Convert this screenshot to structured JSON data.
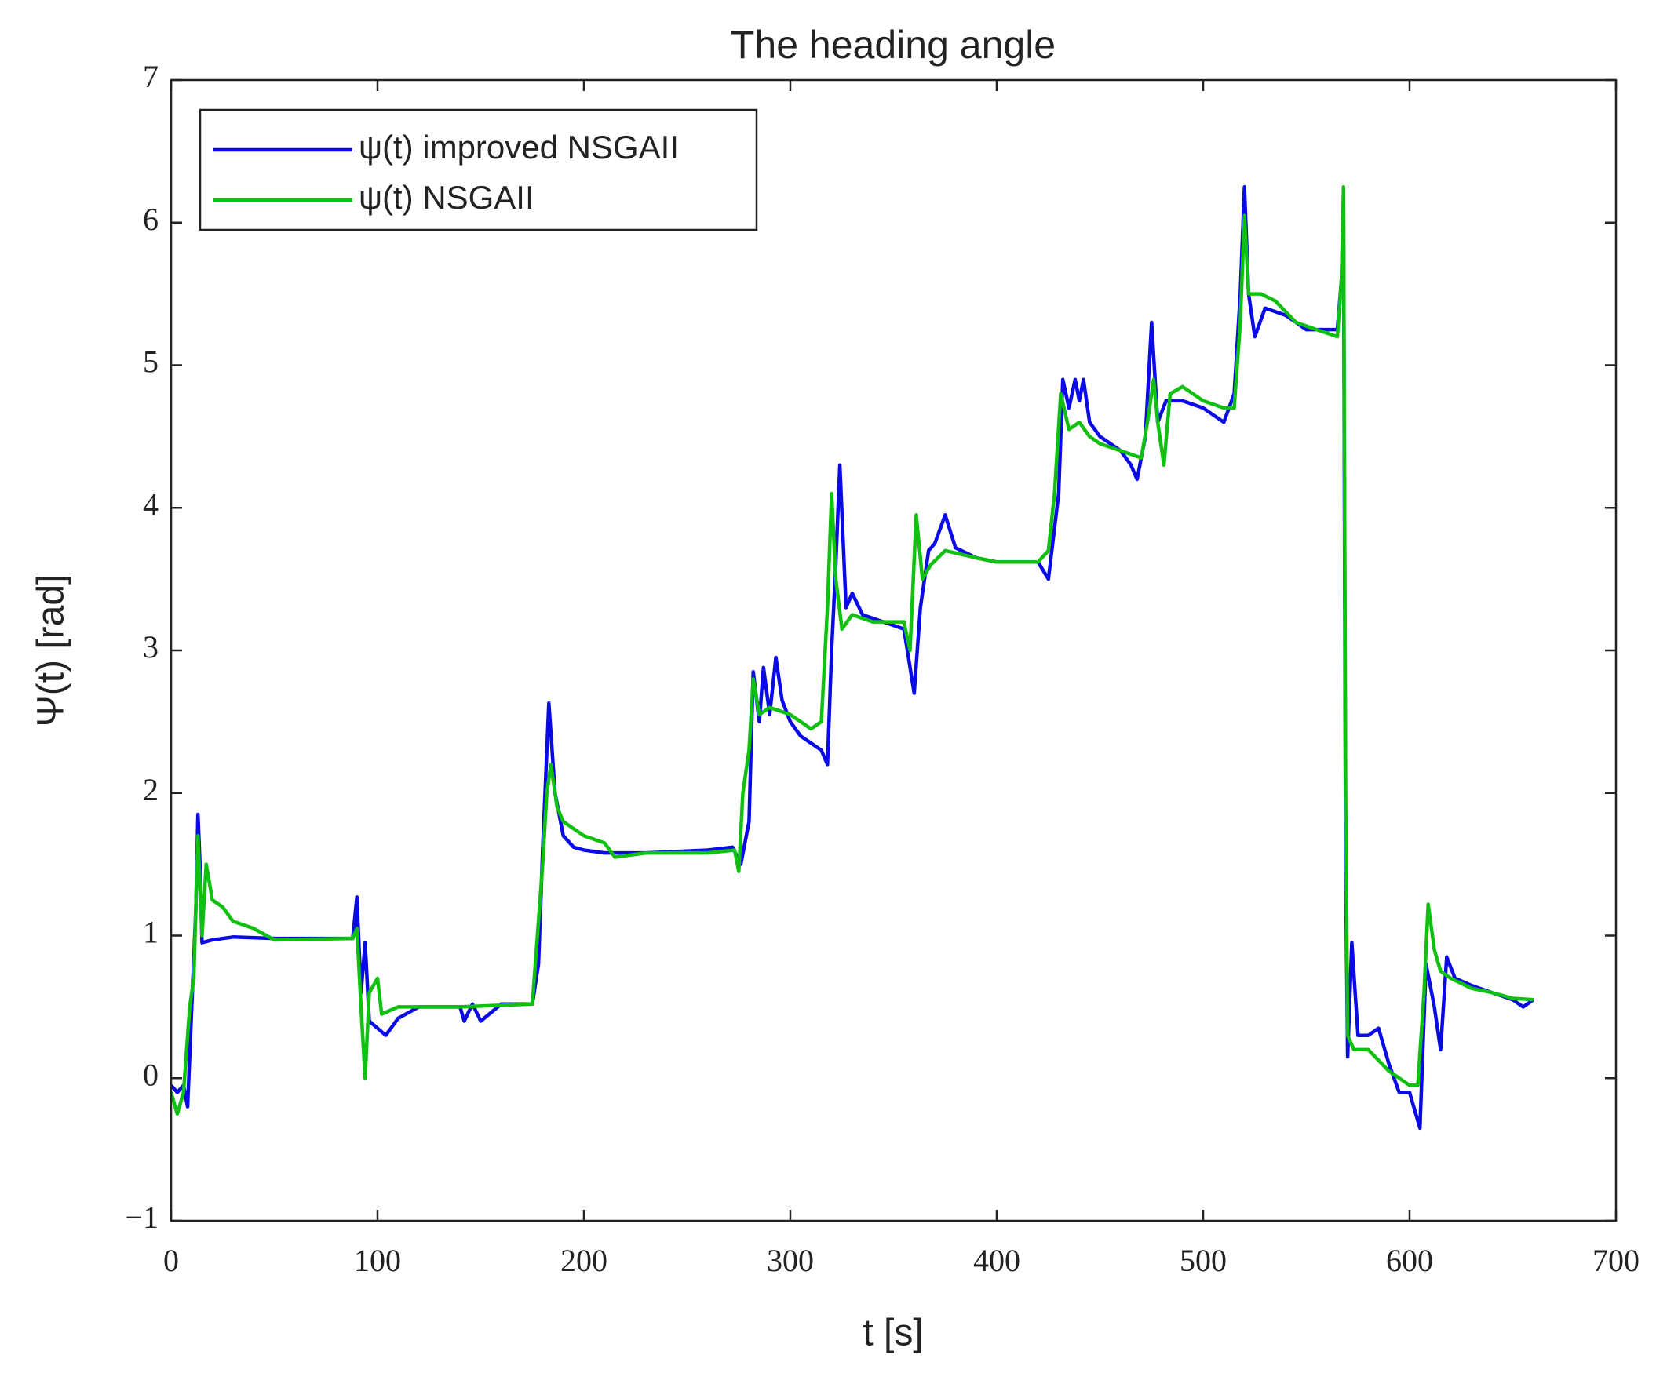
{
  "chart_data": {
    "type": "line",
    "title": "The heading angle",
    "x_label": "t [s]",
    "y_label": "Ψ(t) [rad]",
    "xlim": [
      0,
      700
    ],
    "xticks": [
      0,
      100,
      200,
      300,
      400,
      500,
      600,
      700
    ],
    "ylim": [
      -1,
      7
    ],
    "yticks": [
      {
        "value": -1,
        "label": "−1"
      },
      0,
      1,
      2,
      3,
      4,
      5,
      6,
      7
    ],
    "grid": false,
    "legend": "upper left",
    "series": [
      {
        "name": "ψ(t) improved NSGAII",
        "color": "#0a0ae6",
        "x": [
          0,
          3,
          6,
          8,
          10,
          12,
          13,
          14,
          15,
          20,
          30,
          50,
          88,
          90,
          92,
          94,
          96,
          100,
          104,
          110,
          120,
          140,
          142,
          146,
          150,
          160,
          175,
          178,
          180,
          183,
          186,
          190,
          195,
          200,
          210,
          230,
          260,
          272,
          276,
          280,
          282,
          285,
          287,
          290,
          293,
          296,
          300,
          305,
          310,
          315,
          318,
          320,
          322,
          324,
          327,
          330,
          335,
          345,
          355,
          360,
          363,
          367,
          370,
          375,
          380,
          390,
          400,
          420,
          425,
          430,
          432,
          435,
          438,
          440,
          442,
          445,
          450,
          460,
          465,
          468,
          472,
          475,
          478,
          482,
          490,
          500,
          510,
          515,
          518,
          520,
          522,
          525,
          530,
          540,
          550,
          565,
          567,
          568,
          569,
          570,
          572,
          575,
          580,
          585,
          590,
          595,
          600,
          605,
          608,
          612,
          615,
          618,
          622,
          630,
          640,
          650,
          655,
          660
        ],
        "values": [
          -0.05,
          -0.1,
          -0.05,
          -0.2,
          0.5,
          1.2,
          1.85,
          1.5,
          0.95,
          0.97,
          0.99,
          0.98,
          0.98,
          1.27,
          0.6,
          0.95,
          0.4,
          0.35,
          0.3,
          0.42,
          0.5,
          0.5,
          0.4,
          0.52,
          0.4,
          0.52,
          0.52,
          0.8,
          1.6,
          2.63,
          2.0,
          1.7,
          1.62,
          1.6,
          1.58,
          1.58,
          1.6,
          1.62,
          1.5,
          1.8,
          2.85,
          2.5,
          2.88,
          2.55,
          2.95,
          2.65,
          2.5,
          2.4,
          2.35,
          2.3,
          2.2,
          3.0,
          3.6,
          4.3,
          3.3,
          3.4,
          3.25,
          3.2,
          3.15,
          2.7,
          3.3,
          3.7,
          3.75,
          3.95,
          3.72,
          3.65,
          3.62,
          3.62,
          3.5,
          4.1,
          4.9,
          4.7,
          4.9,
          4.75,
          4.9,
          4.6,
          4.5,
          4.4,
          4.3,
          4.2,
          4.5,
          5.3,
          4.6,
          4.75,
          4.75,
          4.7,
          4.6,
          4.8,
          5.5,
          6.25,
          5.5,
          5.2,
          5.4,
          5.35,
          5.25,
          5.25,
          5.6,
          6.1,
          1.5,
          0.15,
          0.95,
          0.3,
          0.3,
          0.35,
          0.1,
          -0.1,
          -0.1,
          -0.35,
          0.8,
          0.5,
          0.2,
          0.85,
          0.7,
          0.65,
          0.6,
          0.55,
          0.5,
          0.55
        ]
      },
      {
        "name": "ψ(t) NSGAII",
        "color": "#10c010",
        "x": [
          0,
          3,
          6,
          9,
          11,
          13,
          15,
          17,
          20,
          25,
          30,
          40,
          50,
          88,
          90,
          92,
          94,
          96,
          100,
          102,
          110,
          140,
          175,
          178,
          180,
          182,
          184,
          187,
          190,
          200,
          210,
          215,
          230,
          260,
          273,
          275,
          277,
          280,
          282,
          285,
          290,
          300,
          310,
          315,
          318,
          320,
          322,
          325,
          330,
          340,
          355,
          358,
          361,
          364,
          368,
          375,
          390,
          400,
          420,
          425,
          428,
          431,
          435,
          440,
          445,
          450,
          460,
          470,
          473,
          476,
          478,
          481,
          484,
          490,
          500,
          510,
          515,
          518,
          520,
          522,
          528,
          535,
          545,
          555,
          565,
          567,
          568,
          569,
          570,
          573,
          580,
          590,
          600,
          604,
          607,
          609,
          612,
          615,
          620,
          630,
          640,
          650,
          660
        ],
        "values": [
          -0.1,
          -0.25,
          -0.1,
          0.5,
          0.7,
          1.7,
          1.0,
          1.5,
          1.25,
          1.2,
          1.1,
          1.05,
          0.97,
          0.98,
          1.05,
          0.5,
          0.0,
          0.6,
          0.7,
          0.45,
          0.5,
          0.5,
          0.52,
          1.1,
          1.5,
          2.0,
          2.2,
          1.9,
          1.8,
          1.7,
          1.65,
          1.55,
          1.58,
          1.58,
          1.6,
          1.45,
          2.0,
          2.3,
          2.8,
          2.55,
          2.6,
          2.55,
          2.45,
          2.5,
          3.3,
          4.1,
          3.5,
          3.15,
          3.25,
          3.2,
          3.2,
          3.0,
          3.95,
          3.5,
          3.6,
          3.7,
          3.65,
          3.62,
          3.62,
          3.7,
          4.1,
          4.8,
          4.55,
          4.6,
          4.5,
          4.45,
          4.4,
          4.35,
          4.6,
          4.9,
          4.6,
          4.3,
          4.8,
          4.85,
          4.75,
          4.7,
          4.7,
          5.3,
          6.05,
          5.5,
          5.5,
          5.45,
          5.3,
          5.25,
          5.2,
          5.6,
          6.25,
          2.0,
          0.3,
          0.2,
          0.2,
          0.05,
          -0.05,
          -0.05,
          0.6,
          1.22,
          0.9,
          0.75,
          0.7,
          0.63,
          0.6,
          0.56,
          0.55
        ]
      }
    ]
  }
}
